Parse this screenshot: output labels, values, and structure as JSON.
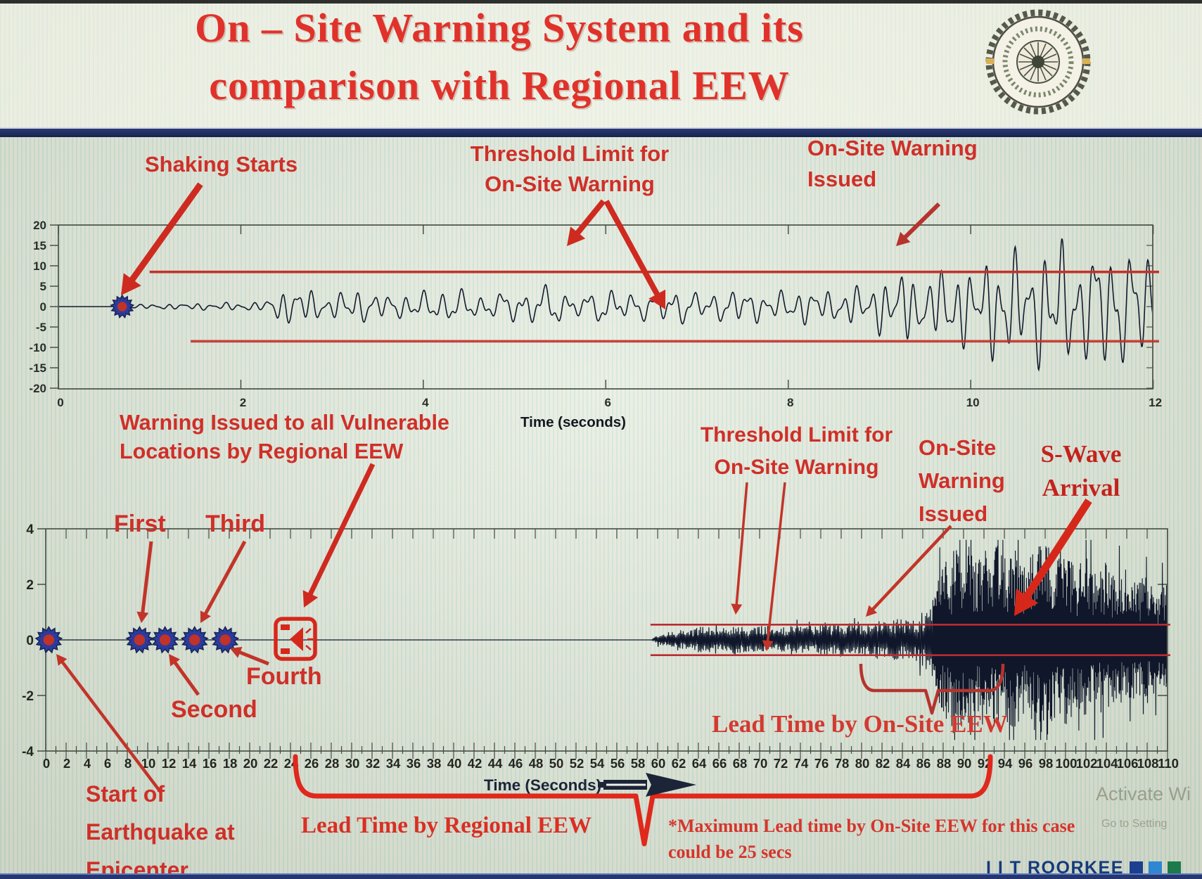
{
  "title": {
    "line1": "On – Site Warning System and its",
    "line2": "comparison with Regional EEW"
  },
  "logo": {
    "name": "IIT Roorkee emblem"
  },
  "annotations_top": {
    "shaking_starts": "Shaking Starts",
    "threshold_line1": "Threshold Limit for",
    "threshold_line2": "On-Site Warning",
    "issued_line1": "On-Site Warning",
    "issued_line2": "Issued",
    "time_axis_label": "Time (seconds)"
  },
  "annotations_bottom": {
    "vulnerable_line1": "Warning Issued to all Vulnerable",
    "vulnerable_line2": "Locations by Regional EEW",
    "first": "First",
    "second": "Second",
    "third": "Third",
    "fourth": "Fourth",
    "threshold_line1": "Threshold Limit for",
    "threshold_line2": "On-Site Warning",
    "onsite_line1": "On-Site",
    "onsite_line2": "Warning",
    "onsite_line3": "Issued",
    "swave_line1": "S-Wave",
    "swave_line2": "Arrival",
    "lead_onsite": "Lead Time by On-Site EEW",
    "start_line1": "Start of",
    "start_line2": "Earthquake at",
    "start_line3": "Epicenter",
    "time_axis_label": "Time (Seconds)",
    "lead_regional": "Lead Time by Regional EEW",
    "note_line1": "*Maximum Lead time by On-Site EEW for this case",
    "note_line2": "could be 25 secs"
  },
  "footer": {
    "brand": "I I T ROORKEE",
    "square_colors": [
      "#1d3f8f",
      "#2f86d2",
      "#1d7a4b"
    ],
    "watermark_line1": "Activate Wi",
    "watermark_line2": "Go to Setting"
  },
  "colors": {
    "annotation_red": "#cf2f28",
    "threshold_red": "#c2332b",
    "waveform": "#131a2d",
    "separator_navy": "#1d2a66"
  },
  "chart_data": [
    {
      "type": "line",
      "name": "on-site-seismogram",
      "xlabel": "Time (seconds)",
      "ylabel": "",
      "xlim": [
        0,
        12
      ],
      "ylim": [
        -20,
        20
      ],
      "xtick_labels": [
        0,
        2,
        4,
        6,
        8,
        10,
        12
      ],
      "ytick_labels": [
        20,
        15,
        10,
        5,
        0,
        -5,
        -10,
        -15,
        -20
      ],
      "grid": false,
      "threshold": {
        "upper": 8.5,
        "lower": -8.5,
        "start_x": 1.0
      },
      "events": {
        "shaking_starts_t": 0.7,
        "onsite_warning_issued_t": 9.25
      },
      "amplitude_envelope": [
        [
          0,
          0
        ],
        [
          0.66,
          0
        ],
        [
          0.7,
          1.0
        ],
        [
          0.9,
          0.55
        ],
        [
          1.3,
          0.7
        ],
        [
          1.8,
          0.95
        ],
        [
          2.25,
          1.1
        ],
        [
          2.4,
          3.8
        ],
        [
          2.65,
          4.8
        ],
        [
          2.95,
          2.6
        ],
        [
          3.25,
          4.5
        ],
        [
          3.6,
          2.8
        ],
        [
          3.95,
          3.4
        ],
        [
          4.3,
          4.4
        ],
        [
          4.7,
          2.7
        ],
        [
          5.05,
          4.2
        ],
        [
          5.35,
          5.0
        ],
        [
          5.7,
          3.0
        ],
        [
          6.05,
          4.3
        ],
        [
          6.4,
          3.2
        ],
        [
          6.75,
          4.6
        ],
        [
          7.1,
          3.1
        ],
        [
          7.45,
          4.3
        ],
        [
          7.8,
          3.3
        ],
        [
          8.15,
          4.4
        ],
        [
          8.5,
          3.6
        ],
        [
          8.8,
          5.2
        ],
        [
          9.1,
          7.0
        ],
        [
          9.3,
          9.0
        ],
        [
          9.55,
          6.5
        ],
        [
          9.8,
          11.5
        ],
        [
          10.05,
          8.0
        ],
        [
          10.35,
          16.0
        ],
        [
          10.6,
          11.0
        ],
        [
          10.9,
          17.5
        ],
        [
          11.2,
          12.5
        ],
        [
          11.5,
          16.5
        ],
        [
          11.75,
          13.5
        ],
        [
          12,
          15.5
        ]
      ]
    },
    {
      "type": "line",
      "name": "regional-vs-onsite-timeline",
      "xlabel": "Time (Seconds)",
      "ylabel": "",
      "xlim": [
        0,
        110
      ],
      "ylim": [
        -4,
        4
      ],
      "xtick_labels": [
        0,
        2,
        4,
        6,
        8,
        10,
        12,
        14,
        16,
        18,
        20,
        22,
        24,
        26,
        28,
        30,
        32,
        34,
        36,
        38,
        40,
        42,
        44,
        46,
        48,
        50,
        52,
        54,
        56,
        58,
        60,
        62,
        64,
        66,
        68,
        70,
        72,
        74,
        76,
        78,
        80,
        82,
        84,
        86,
        88,
        90,
        92,
        94,
        96,
        98,
        100,
        102,
        104,
        106,
        108,
        110
      ],
      "ytick_labels": [
        4,
        2,
        0,
        -2,
        -4
      ],
      "right_tick_values": [
        2,
        -2
      ],
      "grid": false,
      "threshold": {
        "upper": 0.55,
        "lower": -0.55,
        "start_x": 59.3
      },
      "station_trigger_times": [
        0.3,
        9.2,
        11.7,
        14.6,
        17.6
      ],
      "events": {
        "regional_warning_issued_t": 24.4,
        "p_wave_arrival_t": 60,
        "onsite_warning_issued_t": 80,
        "s_wave_arrival_t": 93.5
      },
      "lead_time_onsite_span": [
        80,
        94
      ],
      "lead_time_regional_span": [
        24.5,
        93
      ],
      "amplitude_envelope": [
        [
          0,
          0
        ],
        [
          59.4,
          0
        ],
        [
          59.8,
          0.12
        ],
        [
          61,
          0.28
        ],
        [
          63,
          0.34
        ],
        [
          64.5,
          0.46
        ],
        [
          66,
          0.36
        ],
        [
          67.5,
          0.5
        ],
        [
          69,
          0.38
        ],
        [
          70.5,
          0.48
        ],
        [
          72,
          0.4
        ],
        [
          73.5,
          0.5
        ],
        [
          75,
          0.42
        ],
        [
          76.5,
          0.52
        ],
        [
          78,
          0.46
        ],
        [
          79.5,
          0.62
        ],
        [
          80.5,
          0.52
        ],
        [
          81.5,
          0.66
        ],
        [
          82.5,
          0.56
        ],
        [
          83.5,
          0.7
        ],
        [
          84.5,
          0.62
        ],
        [
          85.5,
          0.78
        ],
        [
          86.5,
          1.0
        ],
        [
          87.5,
          1.9
        ],
        [
          88.2,
          2.9
        ],
        [
          88.8,
          2.2
        ],
        [
          89.4,
          3.3
        ],
        [
          90,
          2.5
        ],
        [
          90.6,
          3.4
        ],
        [
          91.3,
          2.5
        ],
        [
          92,
          3.1
        ],
        [
          92.7,
          2.6
        ],
        [
          93.4,
          3.3
        ],
        [
          94.2,
          2.7
        ],
        [
          95,
          3.2
        ],
        [
          96,
          2.5
        ],
        [
          97,
          3.0
        ],
        [
          98,
          3.3
        ],
        [
          99,
          2.6
        ],
        [
          100,
          2.9
        ],
        [
          101,
          2.3
        ],
        [
          102,
          2.8
        ],
        [
          103,
          2.2
        ],
        [
          104,
          2.6
        ],
        [
          105,
          2.0
        ],
        [
          106,
          2.4
        ],
        [
          107,
          1.8
        ],
        [
          108,
          2.1
        ],
        [
          109,
          1.6
        ],
        [
          110,
          1.9
        ]
      ]
    }
  ]
}
